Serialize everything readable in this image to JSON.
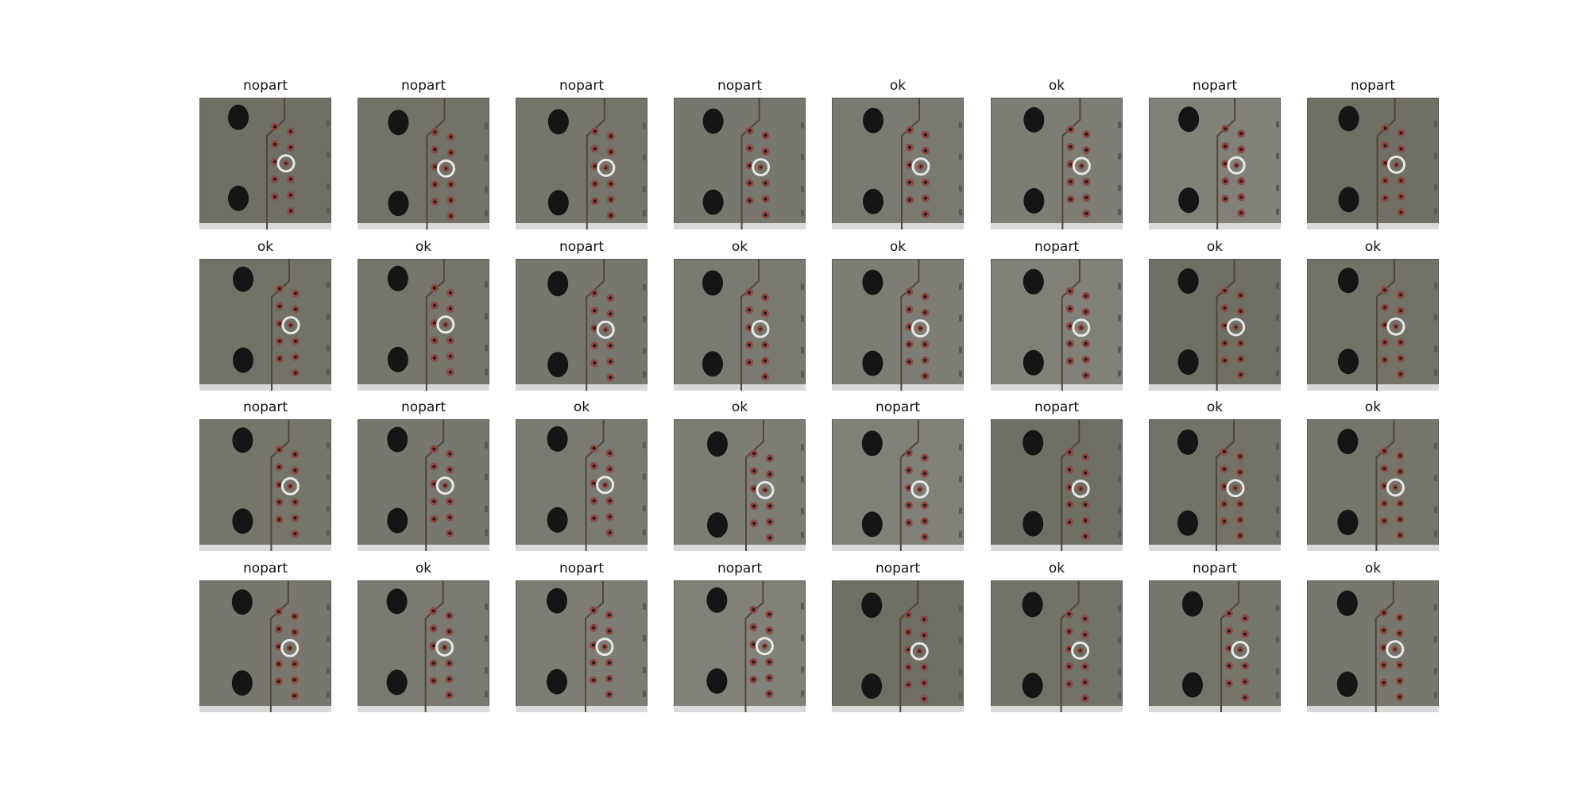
{
  "grid": {
    "rows": [
      [
        "nopart",
        "nopart",
        "nopart",
        "nopart",
        "ok",
        "ok",
        "nopart",
        "nopart"
      ],
      [
        "ok",
        "ok",
        "nopart",
        "ok",
        "ok",
        "nopart",
        "ok",
        "ok"
      ],
      [
        "nopart",
        "nopart",
        "ok",
        "ok",
        "nopart",
        "nopart",
        "ok",
        "ok"
      ],
      [
        "nopart",
        "ok",
        "nopart",
        "nopart",
        "nopart",
        "ok",
        "nopart",
        "ok"
      ]
    ]
  },
  "image_style": {
    "plate_color": "#6f6f66",
    "plate_edge_color": "#5b5b54",
    "hole_color": "#151515",
    "pad_ring_color": "#8a4a42",
    "pad_center_color": "#2a1a18",
    "center_ring_color": "#e8e8e8",
    "trace_color": "#4f463f",
    "bottom_strip_color": "#d9d9d9"
  }
}
